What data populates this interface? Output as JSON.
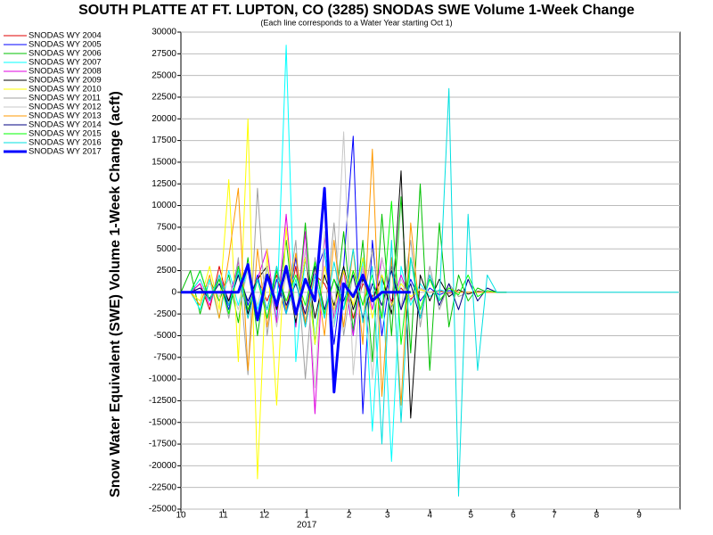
{
  "chart_data": {
    "type": "line",
    "title": "SOUTH PLATTE AT FT. LUPTON, CO (3285) SNODAS SWE Volume 1-Week Change",
    "subtitle": "(Each line corresponds to a Water Year starting Oct 1)",
    "y_label": "Snow Water Equivalent (SWE) Volume 1-Week Change (acft)",
    "x_annotation": "2017",
    "xlim": [
      0,
      365
    ],
    "xticks": [
      {
        "value": 0,
        "label": "10"
      },
      {
        "value": 31,
        "label": "11"
      },
      {
        "value": 61,
        "label": "12"
      },
      {
        "value": 92,
        "label": "1"
      },
      {
        "value": 123,
        "label": "2"
      },
      {
        "value": 151,
        "label": "3"
      },
      {
        "value": 182,
        "label": "4"
      },
      {
        "value": 212,
        "label": "5"
      },
      {
        "value": 243,
        "label": "6"
      },
      {
        "value": 273,
        "label": "7"
      },
      {
        "value": 304,
        "label": "8"
      },
      {
        "value": 335,
        "label": "9"
      }
    ],
    "ylim": [
      -25000,
      30000
    ],
    "yticks": [
      -25000,
      -22500,
      -20000,
      -17500,
      -15000,
      -12500,
      -10000,
      -7500,
      -5000,
      -2500,
      0,
      2500,
      5000,
      7500,
      10000,
      12500,
      15000,
      17500,
      20000,
      22500,
      25000,
      27500,
      30000
    ],
    "grid": true,
    "legend": "left",
    "x": [
      0,
      7,
      14,
      21,
      28,
      35,
      42,
      49,
      56,
      63,
      70,
      77,
      84,
      91,
      98,
      105,
      112,
      119,
      126,
      133,
      140,
      147,
      154,
      161,
      168,
      175,
      182,
      189,
      196,
      203,
      210,
      217,
      224,
      231,
      238,
      266,
      301,
      336,
      364
    ],
    "series": [
      {
        "name": "SNODAS WY 2004",
        "color": "#e00000",
        "width": 1,
        "values": [
          0,
          0,
          1000,
          -2000,
          3000,
          -1500,
          2500,
          -3000,
          1500,
          -1000,
          2000,
          -2500,
          3000,
          -4000,
          2000,
          1000,
          -1500,
          2500,
          -3000,
          1000,
          -500,
          1500,
          -1000,
          500,
          -800,
          300,
          0,
          200,
          -100,
          0,
          0,
          0,
          0,
          0,
          0,
          null,
          null,
          null,
          null
        ]
      },
      {
        "name": "SNODAS WY 2005",
        "color": "#0000ff",
        "width": 1,
        "values": [
          0,
          0,
          2500,
          -1000,
          1500,
          -2000,
          3000,
          -1500,
          2000,
          -3000,
          1500,
          -2500,
          4000,
          -3500,
          2000,
          5000,
          -6000,
          3000,
          18000,
          -14000,
          6000,
          -5000,
          3000,
          -2000,
          1500,
          -1000,
          500,
          -300,
          200,
          0,
          0,
          0,
          0,
          0,
          0,
          null,
          null,
          null,
          null
        ]
      },
      {
        "name": "SNODAS WY 2006",
        "color": "#00c000",
        "width": 1,
        "values": [
          0,
          2500,
          -2500,
          1500,
          -1000,
          2000,
          -3500,
          4000,
          -5000,
          3000,
          -2000,
          6000,
          -4000,
          8000,
          -6000,
          5000,
          -3000,
          7000,
          -4500,
          6000,
          -8000,
          9000,
          -5000,
          11000,
          -7000,
          12500,
          -9000,
          8000,
          -4000,
          2000,
          -1000,
          500,
          0,
          0,
          0,
          null,
          null,
          null,
          null
        ]
      },
      {
        "name": "SNODAS WY 2007",
        "color": "#00ffff",
        "width": 1,
        "values": [
          0,
          0,
          -2000,
          1500,
          -3000,
          2500,
          -1500,
          3000,
          -2000,
          2000,
          -3000,
          28500,
          -8000,
          4000,
          -6000,
          5000,
          -4000,
          3000,
          -5000,
          4000,
          -16000,
          2000,
          -19500,
          3000,
          -1500,
          1000,
          -500,
          300,
          0,
          0,
          0,
          0,
          0,
          0,
          0,
          null,
          null,
          null,
          null
        ]
      },
      {
        "name": "SNODAS WY 2008",
        "color": "#e000e0",
        "width": 1,
        "values": [
          0,
          0,
          1000,
          -1500,
          2000,
          -1000,
          3500,
          -2500,
          1500,
          5000,
          -3500,
          9000,
          -4000,
          7000,
          -14000,
          6500,
          -3000,
          2500,
          -5000,
          3000,
          -2000,
          4000,
          -1500,
          2000,
          -1000,
          500,
          0,
          0,
          0,
          0,
          0,
          0,
          0,
          0,
          0,
          null,
          null,
          null,
          null
        ]
      },
      {
        "name": "SNODAS WY 2009",
        "color": "#000000",
        "width": 1,
        "values": [
          0,
          0,
          500,
          -800,
          1500,
          -1000,
          2000,
          -2500,
          1500,
          3000,
          -2000,
          2500,
          -3500,
          4000,
          -3000,
          2000,
          -1500,
          3000,
          -2000,
          1500,
          -1000,
          2000,
          -2500,
          14000,
          -14500,
          2000,
          -1000,
          1500,
          -500,
          300,
          -200,
          100,
          0,
          0,
          0,
          null,
          null,
          null,
          null
        ]
      },
      {
        "name": "SNODAS WY 2010",
        "color": "#ffff00",
        "width": 1,
        "values": [
          0,
          0,
          -1000,
          3000,
          -2000,
          13000,
          -8000,
          20000,
          -21500,
          5000,
          -13000,
          7500,
          -3000,
          4000,
          -6000,
          3000,
          -2000,
          2500,
          -1500,
          4000,
          -3000,
          2000,
          -1500,
          1000,
          -500,
          300,
          0,
          0,
          0,
          0,
          0,
          0,
          0,
          0,
          0,
          null,
          null,
          null,
          null
        ]
      },
      {
        "name": "SNODAS WY 2011",
        "color": "#a0a0a0",
        "width": 1,
        "values": [
          0,
          0,
          500,
          -1000,
          2000,
          -3000,
          4000,
          -9500,
          12000,
          -5000,
          3000,
          -2000,
          6000,
          -10000,
          4000,
          -3000,
          8000,
          -5000,
          2500,
          -1500,
          5000,
          -3000,
          4000,
          -2000,
          6000,
          -4000,
          3000,
          -2000,
          1000,
          -500,
          0,
          0,
          0,
          0,
          0,
          null,
          null,
          null,
          null
        ]
      },
      {
        "name": "SNODAS WY 2012",
        "color": "#c8c8c8",
        "width": 1,
        "values": [
          0,
          0,
          0,
          1000,
          -500,
          1500,
          -2000,
          2500,
          -1500,
          3000,
          -4000,
          2000,
          -3000,
          5000,
          -11000,
          7000,
          -4000,
          18500,
          -9500,
          3000,
          -10000,
          4000,
          -2000,
          1500,
          -1000,
          500,
          0,
          0,
          0,
          0,
          0,
          0,
          0,
          0,
          0,
          null,
          null,
          null,
          null
        ]
      },
      {
        "name": "SNODAS WY 2013",
        "color": "#ff9900",
        "width": 1,
        "values": [
          0,
          0,
          -1500,
          2000,
          -3000,
          4000,
          12000,
          -9000,
          5000,
          -4000,
          3000,
          -2000,
          4500,
          -3500,
          3000,
          -5000,
          6000,
          -4000,
          5000,
          -6000,
          16500,
          -12000,
          4000,
          -13000,
          8000,
          -3000,
          2000,
          -1000,
          500,
          0,
          0,
          0,
          0,
          0,
          0,
          null,
          null,
          null,
          null
        ]
      },
      {
        "name": "SNODAS WY 2014",
        "color": "#000080",
        "width": 1,
        "values": [
          0,
          0,
          500,
          -700,
          1000,
          -1500,
          2000,
          -1000,
          1500,
          -2000,
          2500,
          -1500,
          1000,
          -2500,
          3000,
          -2000,
          1500,
          -1000,
          2000,
          -3000,
          1000,
          -1500,
          2500,
          -2000,
          1000,
          -3000,
          2000,
          -1500,
          1000,
          -2000,
          1500,
          -1000,
          500,
          0,
          0,
          null,
          null,
          null,
          null
        ]
      },
      {
        "name": "SNODAS WY 2015",
        "color": "#00ff00",
        "width": 1,
        "values": [
          0,
          0,
          2500,
          -1000,
          1500,
          -2500,
          3000,
          -2000,
          1500,
          -3000,
          2500,
          -1000,
          2000,
          -1500,
          3500,
          -2500,
          1500,
          -2000,
          2500,
          -1500,
          2000,
          -3000,
          10500,
          -6000,
          4000,
          -2000,
          1500,
          -1000,
          500,
          -300,
          2000,
          -500,
          200,
          0,
          0,
          null,
          null,
          null,
          null
        ]
      },
      {
        "name": "SNODAS WY 2016",
        "color": "#00e0e0",
        "width": 1,
        "values": [
          0,
          0,
          1500,
          -1000,
          2000,
          -1500,
          2500,
          -3000,
          1500,
          -2000,
          3000,
          -2500,
          1500,
          -4000,
          2000,
          -3000,
          3500,
          -2000,
          5000,
          -3500,
          3000,
          -17500,
          6000,
          -15000,
          4000,
          -3000,
          2000,
          -1000,
          23500,
          -23500,
          9000,
          -9000,
          2000,
          0,
          0,
          0,
          0,
          0,
          0
        ]
      },
      {
        "name": "SNODAS WY 2017",
        "color": "#0000ff",
        "width": 3,
        "values": [
          0,
          0,
          0,
          0,
          0,
          0,
          0,
          3200,
          -3200,
          2000,
          -1500,
          3000,
          -2500,
          1500,
          -1000,
          12000,
          -11500,
          1000,
          -500,
          2000,
          -1000,
          0,
          0,
          0,
          0,
          null,
          null,
          null,
          null,
          null,
          null,
          null,
          null,
          null,
          null,
          null,
          null,
          null,
          null
        ]
      }
    ]
  }
}
